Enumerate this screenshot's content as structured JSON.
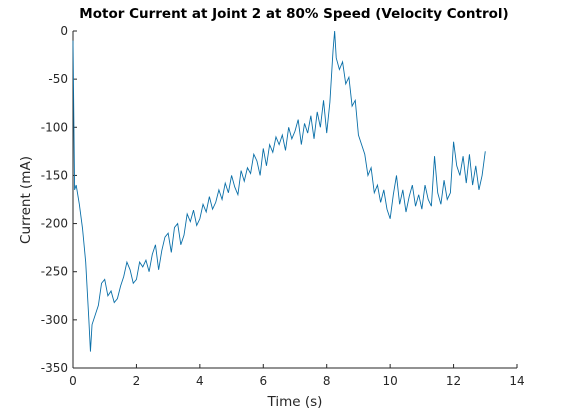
{
  "chart_data": {
    "type": "line",
    "title": "Motor Current at Joint 2 at 80% Speed (Velocity Control)",
    "x_label": "Time (s)",
    "y_label": "Current (mA)",
    "x": [
      0,
      0.05,
      0.1,
      0.2,
      0.3,
      0.4,
      0.45,
      0.5,
      0.55,
      0.6,
      0.7,
      0.8,
      0.9,
      1.0,
      1.1,
      1.2,
      1.3,
      1.4,
      1.5,
      1.6,
      1.7,
      1.8,
      1.9,
      2.0,
      2.1,
      2.2,
      2.3,
      2.4,
      2.5,
      2.6,
      2.7,
      2.8,
      2.9,
      3.0,
      3.1,
      3.2,
      3.3,
      3.4,
      3.5,
      3.6,
      3.7,
      3.8,
      3.9,
      4.0,
      4.1,
      4.2,
      4.3,
      4.4,
      4.5,
      4.6,
      4.7,
      4.8,
      4.9,
      5.0,
      5.1,
      5.2,
      5.3,
      5.4,
      5.5,
      5.6,
      5.7,
      5.8,
      5.9,
      6.0,
      6.1,
      6.2,
      6.3,
      6.4,
      6.5,
      6.6,
      6.7,
      6.8,
      6.9,
      7.0,
      7.1,
      7.2,
      7.3,
      7.4,
      7.5,
      7.6,
      7.7,
      7.8,
      7.9,
      8.0,
      8.1,
      8.2,
      8.25,
      8.3,
      8.4,
      8.5,
      8.6,
      8.7,
      8.8,
      8.9,
      9.0,
      9.1,
      9.2,
      9.3,
      9.4,
      9.5,
      9.6,
      9.7,
      9.8,
      9.9,
      10.0,
      10.1,
      10.2,
      10.3,
      10.4,
      10.5,
      10.6,
      10.7,
      10.8,
      10.9,
      11.0,
      11.1,
      11.2,
      11.3,
      11.4,
      11.5,
      11.6,
      11.7,
      11.8,
      11.9,
      12.0,
      12.1,
      12.2,
      12.3,
      12.4,
      12.5,
      12.6,
      12.7,
      12.8,
      12.9,
      13.0
    ],
    "series": [
      {
        "name": "Current",
        "color": "#0a6fa8",
        "values": [
          -10,
          -165,
          -160,
          -180,
          -205,
          -240,
          -270,
          -300,
          -333,
          -305,
          -295,
          -285,
          -262,
          -258,
          -275,
          -270,
          -282,
          -278,
          -265,
          -255,
          -240,
          -248,
          -262,
          -258,
          -240,
          -245,
          -238,
          -250,
          -232,
          -222,
          -248,
          -228,
          -214,
          -210,
          -230,
          -204,
          -200,
          -222,
          -212,
          -190,
          -198,
          -186,
          -202,
          -195,
          -180,
          -188,
          -172,
          -185,
          -178,
          -165,
          -175,
          -158,
          -168,
          -150,
          -162,
          -170,
          -145,
          -156,
          -142,
          -148,
          -128,
          -135,
          -150,
          -122,
          -140,
          -118,
          -126,
          -110,
          -118,
          -108,
          -124,
          -100,
          -112,
          -104,
          -92,
          -118,
          -96,
          -106,
          -88,
          -112,
          -84,
          -100,
          -72,
          -106,
          -74,
          -20,
          0,
          -28,
          -40,
          -32,
          -55,
          -48,
          -78,
          -72,
          -108,
          -118,
          -128,
          -150,
          -142,
          -168,
          -160,
          -178,
          -165,
          -185,
          -195,
          -170,
          -150,
          -180,
          -165,
          -188,
          -172,
          -160,
          -182,
          -170,
          -185,
          -160,
          -175,
          -182,
          -130,
          -168,
          -180,
          -155,
          -175,
          -168,
          -115,
          -140,
          -150,
          -130,
          -158,
          -128,
          -160,
          -140,
          -165,
          -150,
          -125
        ]
      }
    ],
    "xlim": [
      0,
      14
    ],
    "xticks": [
      0,
      2,
      4,
      6,
      8,
      10,
      12,
      14
    ],
    "ylim": [
      -350,
      0
    ],
    "yticks": [
      -350,
      -300,
      -250,
      -200,
      -150,
      -100,
      -50,
      0
    ]
  }
}
